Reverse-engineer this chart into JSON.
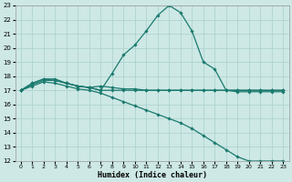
{
  "xlabel": "Humidex (Indice chaleur)",
  "xlim": [
    -0.5,
    23.5
  ],
  "ylim": [
    12,
    23
  ],
  "yticks": [
    12,
    13,
    14,
    15,
    16,
    17,
    18,
    19,
    20,
    21,
    22,
    23
  ],
  "xticks": [
    0,
    1,
    2,
    3,
    4,
    5,
    6,
    7,
    8,
    9,
    10,
    11,
    12,
    13,
    14,
    15,
    16,
    17,
    18,
    19,
    20,
    21,
    22,
    23
  ],
  "background_color": "#cde8e5",
  "grid_color": "#aad0cc",
  "line_color": "#1a7a6e",
  "line1_x": [
    0,
    1,
    2,
    3,
    4,
    5,
    6,
    7,
    8,
    9,
    10,
    11,
    12,
    13,
    14,
    15,
    16,
    17,
    18,
    19,
    20,
    21,
    22,
    23
  ],
  "line1_y": [
    17,
    17.5,
    17.8,
    17.8,
    17.5,
    17.3,
    17.2,
    17.0,
    18.2,
    19.5,
    20.2,
    21.2,
    22.3,
    23.0,
    22.5,
    21.2,
    19.0,
    18.5,
    17.0,
    16.9,
    16.9,
    16.9,
    16.9,
    16.9
  ],
  "line2_x": [
    0,
    1,
    2,
    3,
    4,
    5,
    6,
    7,
    8,
    9,
    10,
    11,
    12,
    13,
    14,
    15,
    16,
    17,
    18,
    19,
    20,
    21,
    22,
    23
  ],
  "line2_y": [
    17,
    17.5,
    17.8,
    17.7,
    17.5,
    17.3,
    17.2,
    17.0,
    17.0,
    17.0,
    17.0,
    17.0,
    17.0,
    17.0,
    17.0,
    17.0,
    17.0,
    17.0,
    17.0,
    17.0,
    17.0,
    17.0,
    17.0,
    17.0
  ],
  "line3_x": [
    0,
    1,
    2,
    3,
    4,
    5,
    6,
    7,
    8,
    9,
    10,
    11,
    12,
    13,
    14,
    15,
    16,
    17,
    18,
    19,
    20,
    21,
    22,
    23
  ],
  "line3_y": [
    17,
    17.4,
    17.7,
    17.7,
    17.5,
    17.3,
    17.2,
    17.3,
    17.2,
    17.1,
    17.1,
    17.0,
    17.0,
    17.0,
    17.0,
    17.0,
    17.0,
    17.0,
    17.0,
    17.0,
    17.0,
    17.0,
    17.0,
    17.0
  ],
  "line4_x": [
    0,
    1,
    2,
    3,
    4,
    5,
    6,
    7,
    8,
    9,
    10,
    11,
    12,
    13,
    14,
    15,
    16,
    17,
    18,
    19,
    20,
    21,
    22,
    23
  ],
  "line4_y": [
    17,
    17.3,
    17.6,
    17.5,
    17.3,
    17.1,
    17.0,
    16.8,
    16.5,
    16.2,
    15.9,
    15.6,
    15.3,
    15.0,
    14.7,
    14.3,
    13.8,
    13.3,
    12.8,
    12.3,
    12.0,
    12.0,
    12.0,
    12.0
  ]
}
